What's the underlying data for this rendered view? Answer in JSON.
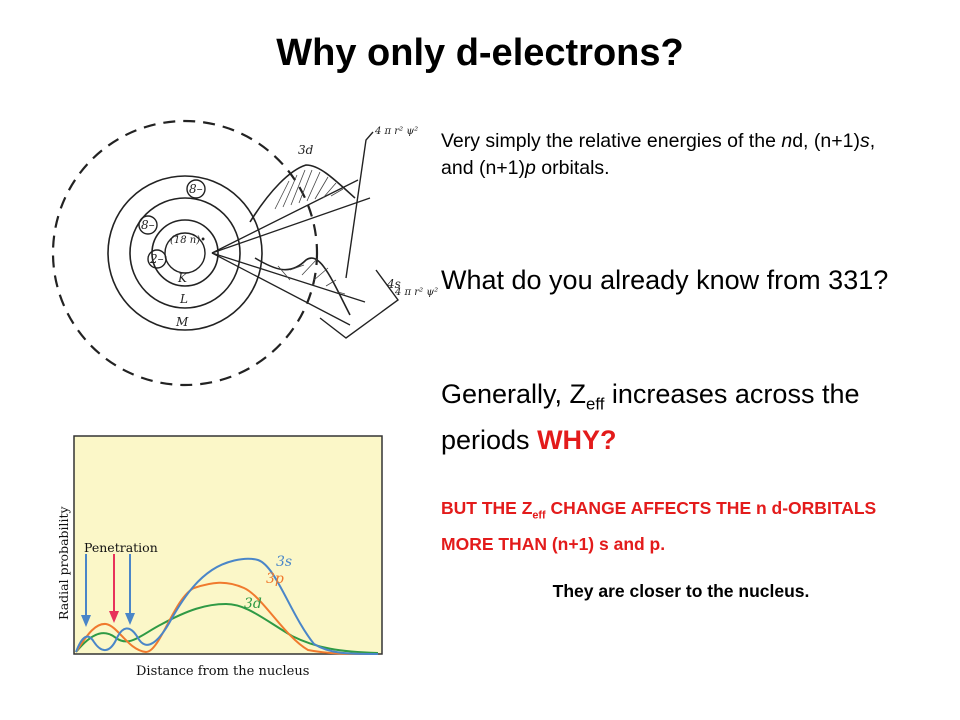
{
  "slide": {
    "title": "Why only d-electrons?",
    "intro": {
      "p1": "Very simply the relative energies of the ",
      "n1": "n",
      "p2": "d, (n+1)",
      "s": "s",
      "p3": ", and (n+1)",
      "p": "p",
      "p4": " orbitals."
    },
    "question": "What do you already know from 331?",
    "zeff": {
      "pre": "Generally, Z",
      "sub": "eff",
      "post": " increases across the periods ",
      "why": "WHY?"
    },
    "caps": {
      "pre": "BUT THE Z",
      "sub": "eff",
      "post": " CHANGE AFFECTS THE n d-ORBITALS MORE THAN (n+1) s and p."
    },
    "closer": "They are closer to the nucleus."
  },
  "atom_figure": {
    "shell_labels": [
      "K",
      "L",
      "M"
    ],
    "electron_labels": [
      "8–",
      "8–",
      "2–",
      "(18 n)•"
    ],
    "curve_labels": [
      "3d",
      "4s"
    ],
    "axis_labels": [
      "4 π r² ψ²",
      "4 π r² ψ²"
    ]
  },
  "radial_plot": {
    "ylabel": "Radial probability",
    "xlabel": "Distance from the nucleus",
    "annotation": "Penetration",
    "series_labels": [
      "3s",
      "3p",
      "3d"
    ],
    "colors": {
      "3s": "#4a86c8",
      "3p": "#f07a2e",
      "3d": "#2f9a45",
      "arrow": "#e8325a",
      "bg": "#fbf7c8"
    }
  }
}
